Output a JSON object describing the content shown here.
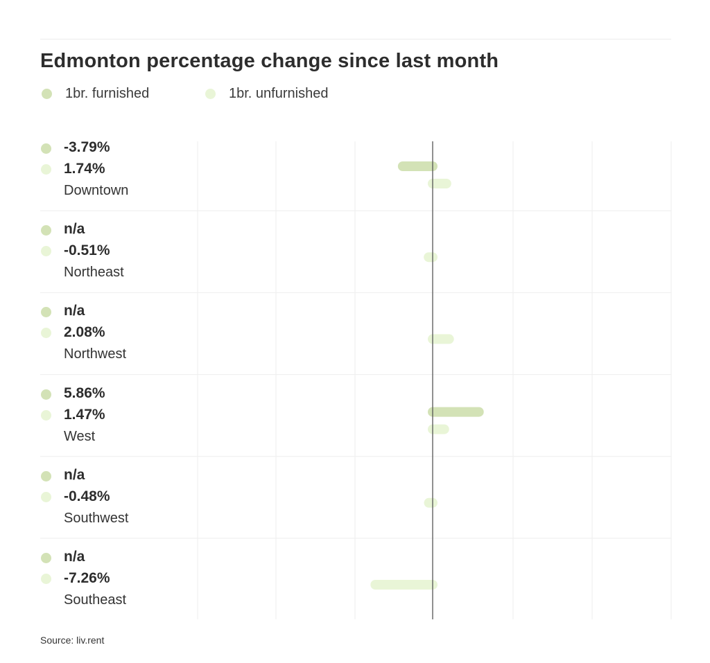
{
  "chart_data": {
    "type": "bar",
    "orientation": "horizontal",
    "title": "Edmonton percentage change since last month",
    "series": [
      {
        "name": "1br. furnished",
        "color": "#d3e2b6"
      },
      {
        "name": "1br. unfurnished",
        "color": "#e9f5d7"
      }
    ],
    "rows": [
      {
        "category": "Downtown",
        "furnished": -3.79,
        "unfurnished": 1.74,
        "furnished_label": "-3.79%",
        "unfurnished_label": "1.74%"
      },
      {
        "category": "Northeast",
        "furnished": null,
        "unfurnished": -0.51,
        "furnished_label": "n/a",
        "unfurnished_label": "-0.51%"
      },
      {
        "category": "Northwest",
        "furnished": null,
        "unfurnished": 2.08,
        "furnished_label": "n/a",
        "unfurnished_label": "2.08%"
      },
      {
        "category": "West",
        "furnished": 5.86,
        "unfurnished": 1.47,
        "furnished_label": "5.86%",
        "unfurnished_label": "1.47%"
      },
      {
        "category": "Southwest",
        "furnished": null,
        "unfurnished": -0.48,
        "furnished_label": "n/a",
        "unfurnished_label": "-0.48%"
      },
      {
        "category": "Southeast",
        "furnished": null,
        "unfurnished": -7.26,
        "furnished_label": "n/a",
        "unfurnished_label": "-7.26%"
      }
    ],
    "xlim": [
      -30,
      30
    ],
    "grid": true,
    "legend_position": "top-left"
  },
  "source": "Source: liv.rent"
}
